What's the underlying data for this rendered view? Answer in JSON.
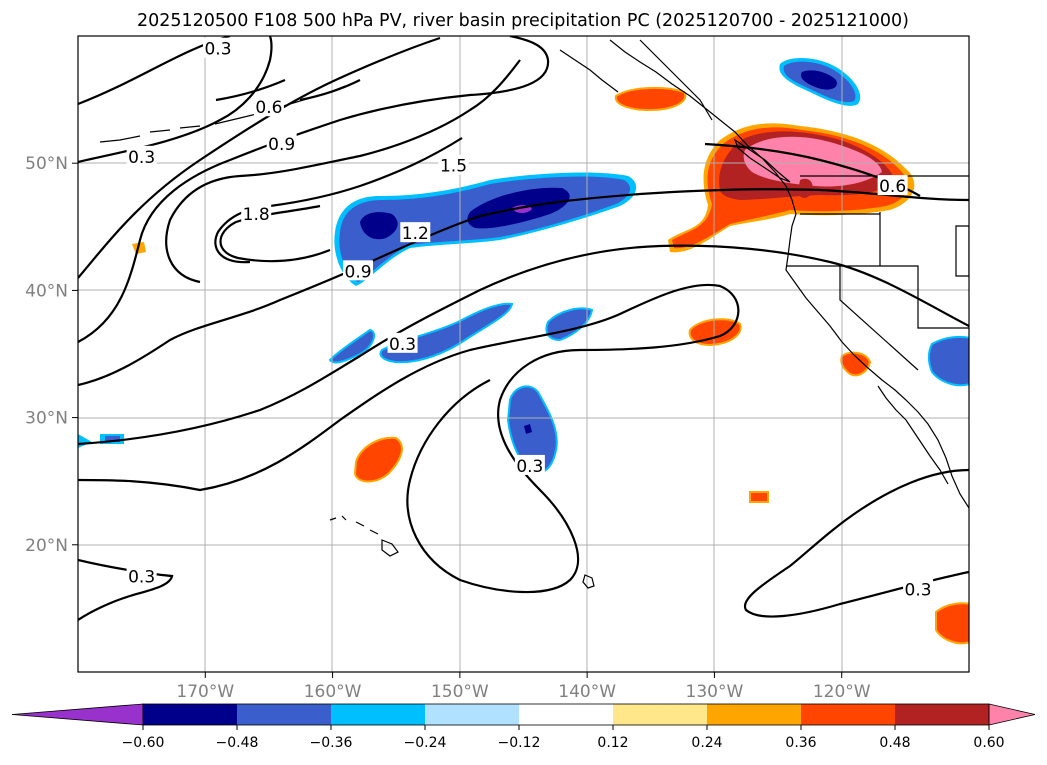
{
  "chart_data": {
    "type": "heatmap",
    "title": "2025120500 F108 500 hPa PV, river basin precipitation PC (2025120700 - 2025121000)",
    "map_extent": {
      "lon": [
        -180,
        -110
      ],
      "lat": [
        10,
        60
      ]
    },
    "xticks": [
      {
        "value": -170,
        "label": "170°W"
      },
      {
        "value": -160,
        "label": "160°W"
      },
      {
        "value": -150,
        "label": "150°W"
      },
      {
        "value": -140,
        "label": "140°W"
      },
      {
        "value": -130,
        "label": "130°W"
      },
      {
        "value": -120,
        "label": "120°W"
      }
    ],
    "yticks": [
      {
        "value": 20,
        "label": "20°N"
      },
      {
        "value": 30,
        "label": "30°N"
      },
      {
        "value": 40,
        "label": "40°N"
      },
      {
        "value": 50,
        "label": "50°N"
      }
    ],
    "grid": true,
    "colorbar": {
      "orientation": "horizontal",
      "extend": "both",
      "levels": [
        -0.6,
        -0.48,
        -0.36,
        -0.24,
        -0.12,
        0.12,
        0.24,
        0.36,
        0.48,
        0.6
      ],
      "tick_labels": [
        "−0.60",
        "−0.48",
        "−0.36",
        "−0.24",
        "−0.12",
        "0.12",
        "0.24",
        "0.36",
        "0.48",
        "0.60"
      ],
      "colors": [
        "#9932cc",
        "#00008b",
        "#3a5fcd",
        "#00bfff",
        "#b0e2ff",
        "#ffffff",
        "#ffe78a",
        "#ffa500",
        "#ff4500",
        "#b22222",
        "#ff82ab"
      ]
    },
    "contour_labels": [
      {
        "text": "0.3",
        "lon": -169,
        "lat": 59
      },
      {
        "text": "0.6",
        "lon": -165,
        "lat": 54.4
      },
      {
        "text": "0.3",
        "lon": -175,
        "lat": 50.5
      },
      {
        "text": "0.9",
        "lon": -164,
        "lat": 51.5
      },
      {
        "text": "1.5",
        "lon": -150.5,
        "lat": 49.8
      },
      {
        "text": "1.8",
        "lon": -166,
        "lat": 46
      },
      {
        "text": "1.2",
        "lon": -153.5,
        "lat": 44.5
      },
      {
        "text": "0.9",
        "lon": -158,
        "lat": 41.5
      },
      {
        "text": "0.3",
        "lon": -154.5,
        "lat": 35.8
      },
      {
        "text": "0.3",
        "lon": -144.5,
        "lat": 26.2
      },
      {
        "text": "0.3",
        "lon": -175,
        "lat": 17.5
      },
      {
        "text": "0.3",
        "lon": -114,
        "lat": 16.5
      },
      {
        "text": "0.6",
        "lon": -116,
        "lat": 48.2
      }
    ]
  }
}
